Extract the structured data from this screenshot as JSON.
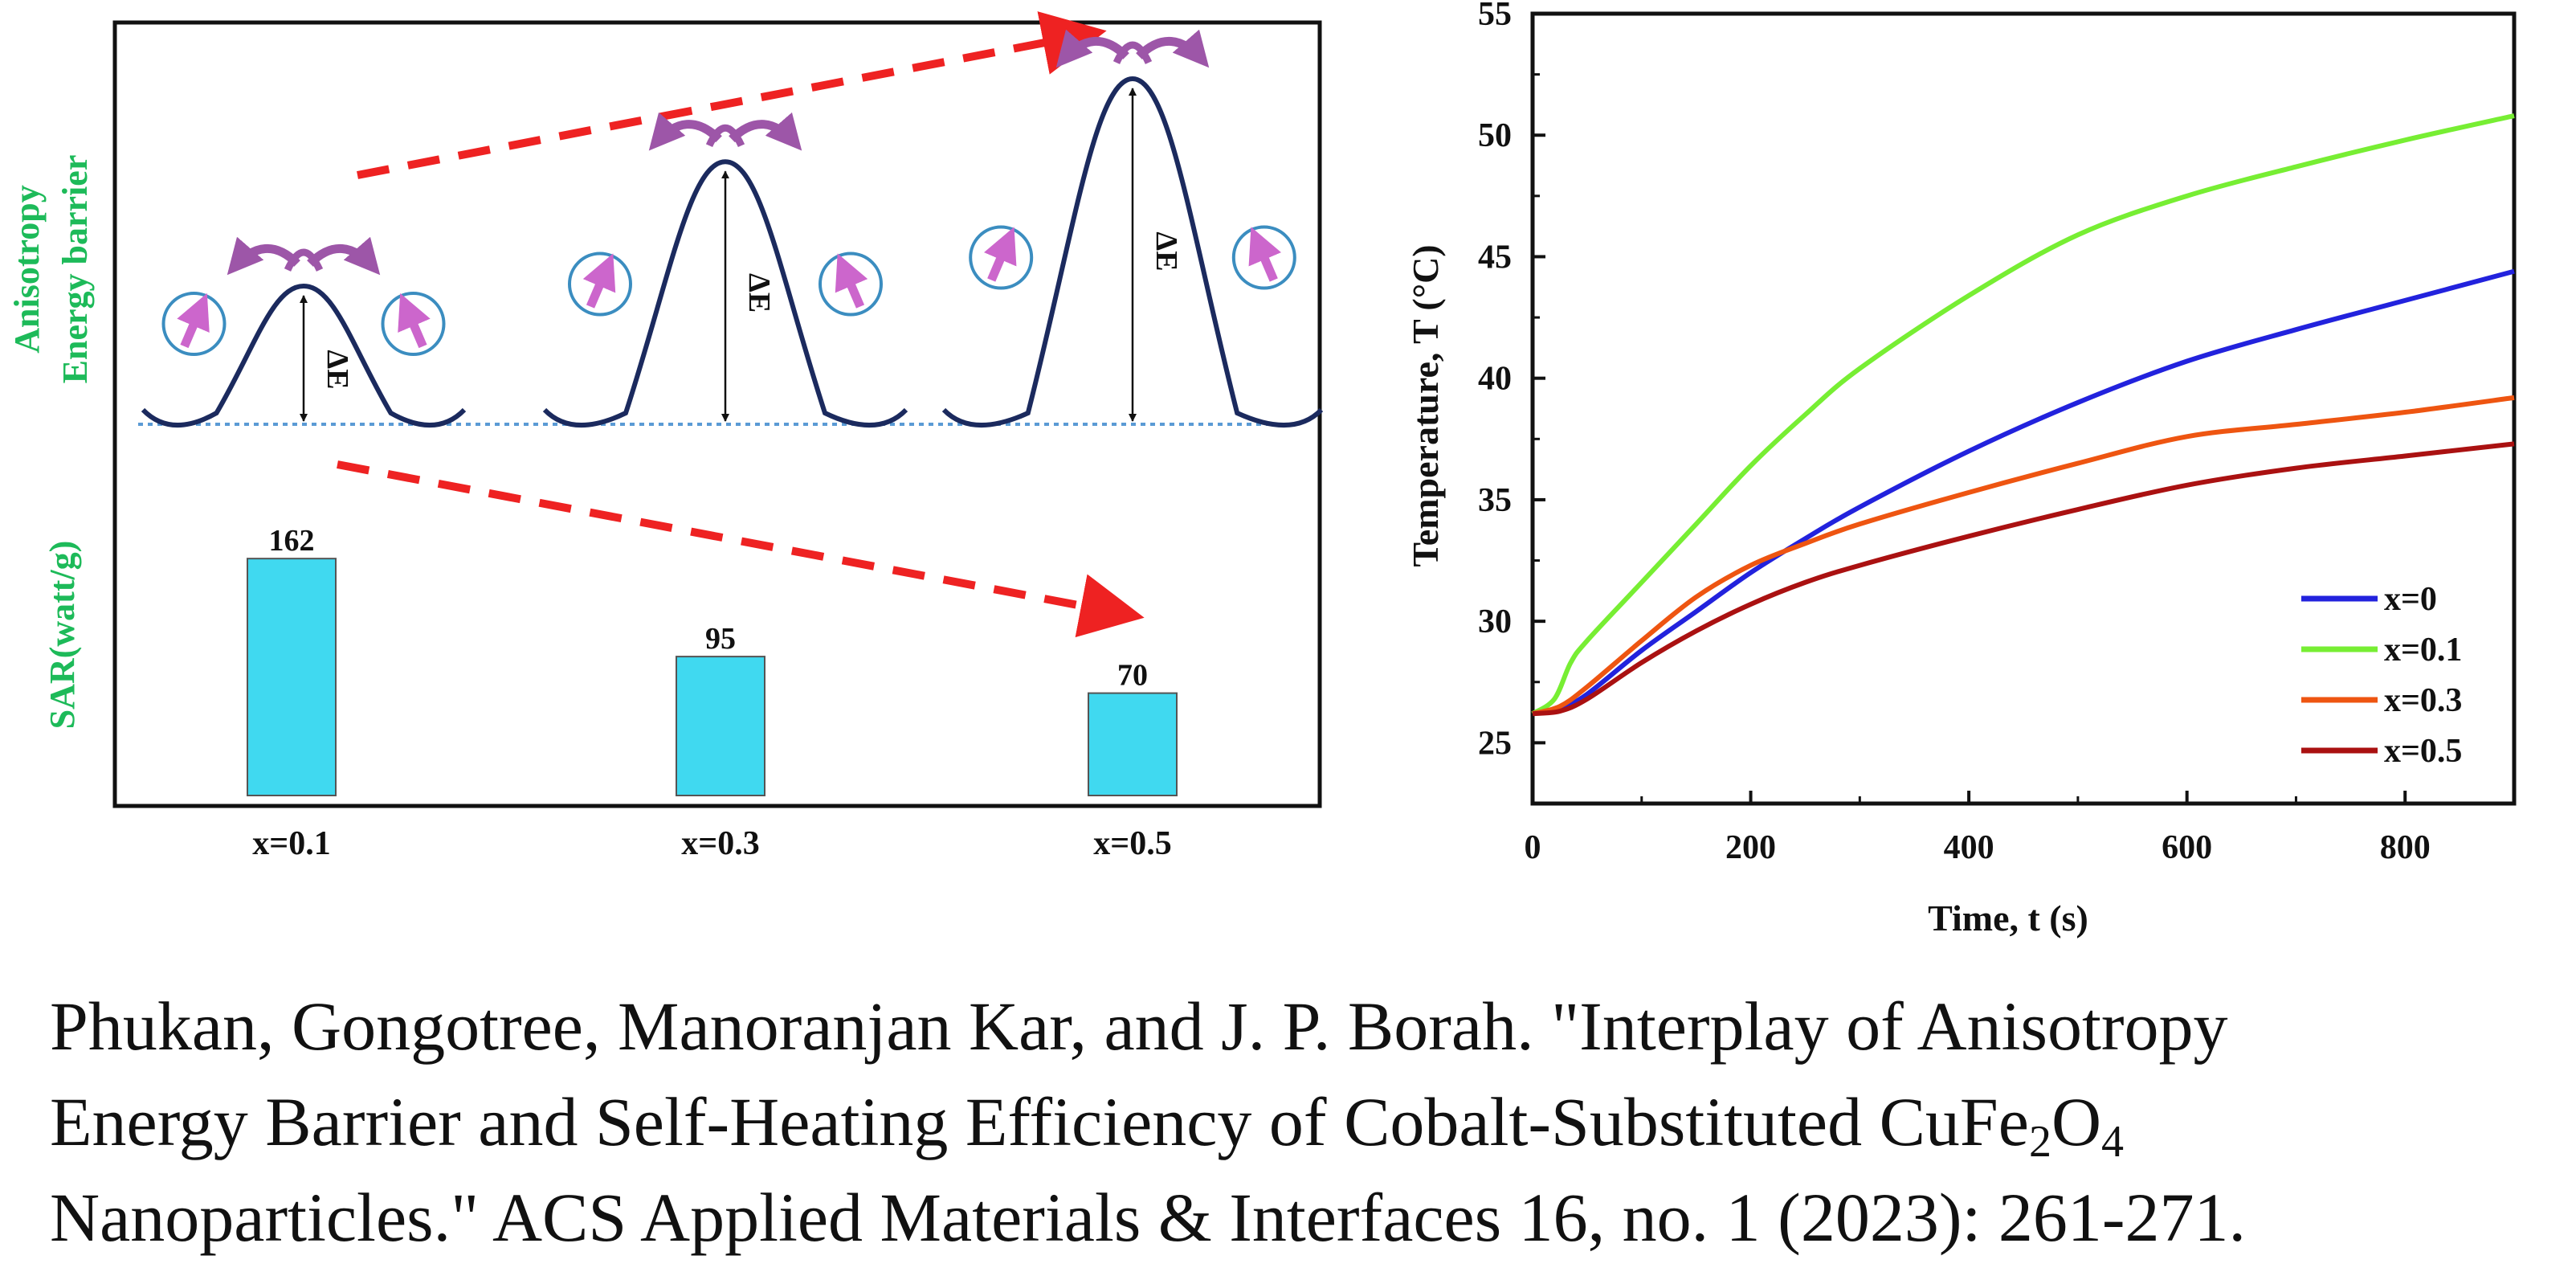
{
  "colors": {
    "barrier_curve": "#1b2a5e",
    "spin_arrow": "#cc66cc",
    "hop_arrow": "#9d56a8",
    "circle": "#3b8dc0",
    "baseline": "#5b9bd5",
    "trend_arrow": "#ee2222",
    "bar_fill": "#40d9f0",
    "bar_stroke": "#555555",
    "green_label": "#1dba59",
    "x0": "#2222dd",
    "x01": "#77ee33",
    "x03": "#ee5511",
    "x05": "#aa1111"
  },
  "left_panel": {
    "ylabel_top_line1": "Anisotropy",
    "ylabel_top_line2": "Energy barrier",
    "ylabel_bottom": "SAR(watt/g)",
    "delta_e_label": "ΔE",
    "categories": [
      "x=0.1",
      "x=0.3",
      "x=0.5"
    ]
  },
  "citation": {
    "line1": "Phukan, Gongotree, Manoranjan Kar, and J. P. Borah. \"Interplay of Anisotropy",
    "line2_a": "Energy Barrier and Self-Heating Efficiency of Cobalt-Substituted CuFe",
    "line2_sub1": "2",
    "line2_b": "O",
    "line2_sub2": "4",
    "line3": "Nanoparticles.\" ACS Applied Materials & Interfaces 16, no. 1 (2023): 261-271."
  },
  "chart_data": [
    {
      "type": "bar",
      "categories": [
        "x=0.1",
        "x=0.3",
        "x=0.5"
      ],
      "values": [
        162,
        95,
        70
      ],
      "ylabel": "SAR(watt/g)",
      "ylim": [
        0,
        170
      ],
      "data_labels": [
        "162",
        "95",
        "70"
      ],
      "energy_barrier_relative": [
        1.0,
        1.9,
        2.5
      ]
    },
    {
      "type": "line",
      "xlabel": "Time, t (s)",
      "ylabel": "Temperature, T (°C)",
      "xlim": [
        0,
        900
      ],
      "ylim": [
        22.5,
        55
      ],
      "xticks": [
        0,
        200,
        400,
        600,
        800
      ],
      "xtick_labels": [
        "0",
        "200",
        "400",
        "600",
        "800"
      ],
      "yticks": [
        25,
        30,
        35,
        40,
        45,
        50,
        55
      ],
      "ytick_labels": [
        "25",
        "30",
        "35",
        "40",
        "45",
        "50",
        "55"
      ],
      "legend_position": "bottom-right",
      "series": [
        {
          "name": "x=0",
          "color_key": "x0",
          "x": [
            0,
            25,
            50,
            100,
            150,
            200,
            250,
            300,
            400,
            500,
            600,
            700,
            800,
            900
          ],
          "y": [
            26.2,
            26.4,
            27.0,
            28.8,
            30.4,
            32.0,
            33.4,
            34.7,
            37.0,
            39.0,
            40.7,
            42.0,
            43.2,
            44.4
          ]
        },
        {
          "name": "x=0.1",
          "color_key": "x01",
          "x": [
            0,
            20,
            35,
            50,
            100,
            150,
            200,
            250,
            300,
            400,
            500,
            600,
            700,
            800,
            900
          ],
          "y": [
            26.2,
            26.8,
            28.3,
            29.2,
            31.6,
            34.0,
            36.4,
            38.5,
            40.4,
            43.4,
            45.9,
            47.5,
            48.7,
            49.8,
            50.8
          ]
        },
        {
          "name": "x=0.3",
          "color_key": "x03",
          "x": [
            0,
            25,
            50,
            100,
            150,
            200,
            250,
            300,
            400,
            500,
            600,
            700,
            800,
            900
          ],
          "y": [
            26.2,
            26.5,
            27.3,
            29.2,
            31.0,
            32.3,
            33.2,
            34.0,
            35.3,
            36.5,
            37.6,
            38.1,
            38.6,
            39.2
          ]
        },
        {
          "name": "x=0.5",
          "color_key": "x05",
          "x": [
            0,
            25,
            50,
            100,
            150,
            200,
            250,
            300,
            400,
            500,
            600,
            700,
            800,
            900
          ],
          "y": [
            26.2,
            26.3,
            26.8,
            28.3,
            29.6,
            30.7,
            31.6,
            32.3,
            33.5,
            34.6,
            35.6,
            36.3,
            36.8,
            37.3
          ]
        }
      ]
    }
  ]
}
